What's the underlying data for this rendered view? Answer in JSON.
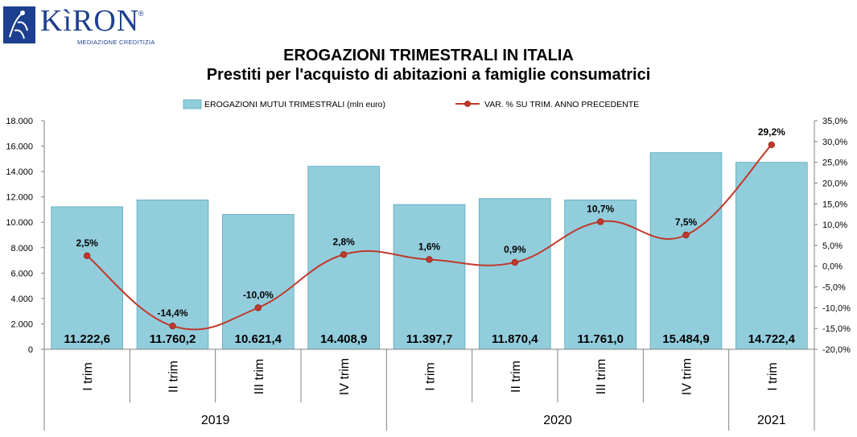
{
  "logo": {
    "word": "KìRON",
    "registered": "®",
    "tagline": "MEDIAZIONE CREDITIZIA"
  },
  "chart_data": {
    "type": "bar",
    "title": "EROGAZIONI TRIMESTRALI IN ITALIA",
    "subtitle": "Prestiti per l'acquisto di abitazioni a famiglie consumatrici",
    "categories": [
      "I trim",
      "II trim",
      "III trim",
      "IV trim",
      "I trim",
      "II trim",
      "III trim",
      "IV trim",
      "I trim"
    ],
    "groups": [
      {
        "label": "2019",
        "count": 4
      },
      {
        "label": "2020",
        "count": 4
      },
      {
        "label": "2021",
        "count": 1
      }
    ],
    "series": [
      {
        "name": "EROGAZIONI MUTUI TRIMESTRALI (mln euro)",
        "type": "bar",
        "axis": "left",
        "color": "#92cddc",
        "values": [
          11222.6,
          11760.2,
          10621.4,
          14408.9,
          11397.7,
          11870.4,
          11761.0,
          15484.9,
          14722.4
        ],
        "labels": [
          "11.222,6",
          "11.760,2",
          "10.621,4",
          "14.408,9",
          "11.397,7",
          "11.870,4",
          "11.761,0",
          "15.484,9",
          "14.722,4"
        ]
      },
      {
        "name": "VAR. % SU TRIM. ANNO PRECEDENTE",
        "type": "line",
        "axis": "right",
        "color": "#c0392b",
        "values": [
          2.5,
          -14.4,
          -10.0,
          2.8,
          1.6,
          0.9,
          10.7,
          7.5,
          29.2
        ],
        "labels": [
          "2,5%",
          "-14,4%",
          "-10,0%",
          "2,8%",
          "1,6%",
          "0,9%",
          "10,7%",
          "7,5%",
          "29,2%"
        ]
      }
    ],
    "y_left": {
      "min": 0,
      "max": 18000,
      "ticks": [
        0,
        2000,
        4000,
        6000,
        8000,
        10000,
        12000,
        14000,
        16000,
        18000
      ],
      "tick_labels": [
        "0",
        "2.000",
        "4.000",
        "6.000",
        "8.000",
        "10.000",
        "12.000",
        "14.000",
        "16.000",
        "18.000"
      ]
    },
    "y_right": {
      "min": -20,
      "max": 35,
      "ticks": [
        -20,
        -15,
        -10,
        -5,
        0,
        5,
        10,
        15,
        20,
        25,
        30,
        35
      ],
      "tick_labels": [
        "-20,0%",
        "-15,0%",
        "-10,0%",
        "-5,0%",
        "0,0%",
        "5,0%",
        "10,0%",
        "15,0%",
        "20,0%",
        "25,0%",
        "30,0%",
        "35,0%"
      ]
    },
    "legend_position": "top",
    "grid": false
  }
}
